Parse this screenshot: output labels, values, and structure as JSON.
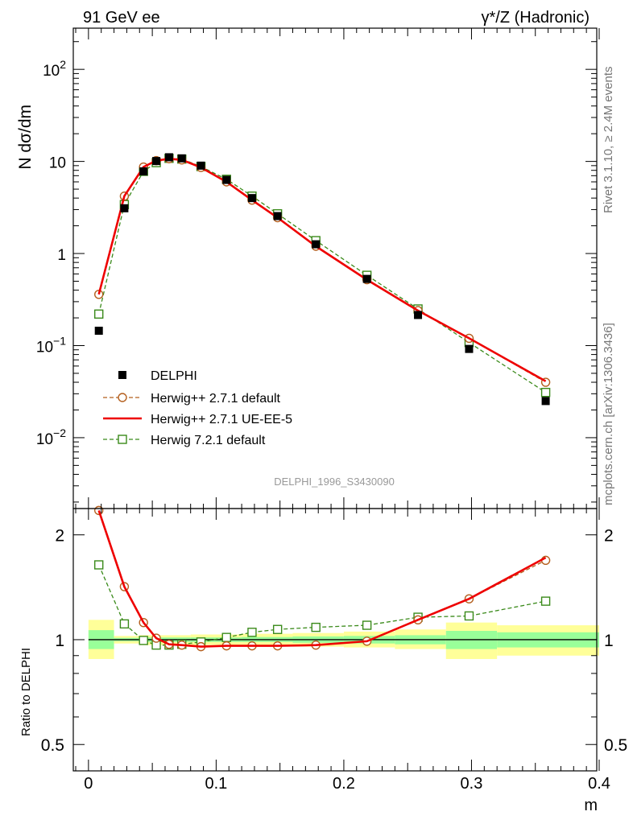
{
  "header": {
    "energy_label": "91 GeV ee",
    "process_label": "γ*/Z (Hadronic)"
  },
  "side": {
    "rivet": "Rivet 3.1.10, ≥ 2.4M events",
    "mcplots": "mcplots.cern.ch [arXiv:1306.3436]"
  },
  "watermark": "DELPHI_1996_S3430090",
  "colors": {
    "data": "#000000",
    "herwigpp_default": "#b45f1e",
    "herwigpp_ueee5": "#ee0000",
    "herwig72": "#3a8a1a",
    "band_outer": "#ffff99",
    "band_inner": "#99ff99"
  },
  "chart_data": [
    {
      "type": "scatter",
      "panel": "main",
      "ylabel": "N dσ/dm",
      "yscale": "log",
      "ylim": [
        0.0017,
        280
      ],
      "xlim": [
        -0.01,
        0.4
      ],
      "yticks": [
        {
          "value": 100,
          "base": "10",
          "exp": "2"
        },
        {
          "value": 10,
          "base": "10",
          "exp": ""
        },
        {
          "value": 1,
          "base": "1",
          "exp": ""
        },
        {
          "value": 0.1,
          "base": "10",
          "exp": "−1"
        },
        {
          "value": 0.01,
          "base": "10",
          "exp": "−2"
        }
      ],
      "legend_position": "bottom-left",
      "x": [
        0.01,
        0.03,
        0.045,
        0.055,
        0.065,
        0.075,
        0.09,
        0.11,
        0.13,
        0.15,
        0.18,
        0.22,
        0.26,
        0.3,
        0.36
      ],
      "series": [
        {
          "name": "DELPHI",
          "style": "data",
          "values": [
            0.145,
            3.1,
            7.8,
            10.1,
            11.1,
            10.8,
            9.0,
            6.3,
            4.0,
            2.55,
            1.26,
            0.53,
            0.215,
            0.092,
            0.025
          ]
        },
        {
          "name": "Herwig++ 2.7.1 default",
          "style": "circle-dashed",
          "values": [
            0.36,
            4.2,
            8.7,
            10.2,
            10.7,
            10.4,
            8.6,
            6.0,
            3.8,
            2.45,
            1.2,
            0.52,
            0.24,
            0.12,
            0.04
          ]
        },
        {
          "name": "Herwig++ 2.7.1 UE-EE-5",
          "style": "solid",
          "values": [
            0.36,
            4.2,
            8.7,
            10.2,
            10.7,
            10.4,
            8.6,
            6.0,
            3.8,
            2.45,
            1.2,
            0.52,
            0.24,
            0.12,
            0.041
          ]
        },
        {
          "name": "Herwig 7.2.1 default",
          "style": "square-dashed",
          "values": [
            0.22,
            3.4,
            7.8,
            9.7,
            10.8,
            10.6,
            8.8,
            6.4,
            4.2,
            2.7,
            1.38,
            0.58,
            0.25,
            0.108,
            0.031
          ]
        }
      ]
    },
    {
      "type": "line",
      "panel": "ratio",
      "ylabel": "Ratio to DELPHI",
      "xlabel": "m",
      "yscale": "log",
      "ylim": [
        0.42,
        2.38
      ],
      "xlim": [
        -0.01,
        0.4
      ],
      "yticks": [
        {
          "value": 2,
          "label": "2"
        },
        {
          "value": 1,
          "label": "1"
        },
        {
          "value": 0.5,
          "label": "0.5"
        }
      ],
      "xticks": [
        {
          "value": 0,
          "label": "0"
        },
        {
          "value": 0.1,
          "label": "0.1"
        },
        {
          "value": 0.2,
          "label": "0.2"
        },
        {
          "value": 0.3,
          "label": "0.3"
        },
        {
          "value": 0.4,
          "label": "0.4"
        }
      ],
      "x": [
        0.01,
        0.03,
        0.045,
        0.055,
        0.065,
        0.075,
        0.09,
        0.11,
        0.13,
        0.15,
        0.18,
        0.22,
        0.26,
        0.3,
        0.36
      ],
      "series": [
        {
          "name": "Herwig++ 2.7.1 default",
          "style": "circle-dashed",
          "values": [
            2.35,
            1.42,
            1.12,
            1.01,
            0.97,
            0.965,
            0.955,
            0.96,
            0.96,
            0.96,
            0.965,
            0.99,
            1.14,
            1.31,
            1.69
          ]
        },
        {
          "name": "Herwig++ 2.7.1 UE-EE-5",
          "style": "solid",
          "values": [
            2.35,
            1.42,
            1.12,
            1.01,
            0.97,
            0.965,
            0.955,
            0.96,
            0.96,
            0.96,
            0.965,
            0.99,
            1.14,
            1.31,
            1.72
          ]
        },
        {
          "name": "Herwig 7.2.1 default",
          "style": "square-dashed",
          "values": [
            1.64,
            1.11,
            0.995,
            0.965,
            0.965,
            0.97,
            0.985,
            1.015,
            1.05,
            1.07,
            1.085,
            1.1,
            1.16,
            1.17,
            1.29
          ]
        }
      ],
      "bands": [
        {
          "x0": 0.0,
          "x1": 0.02,
          "outer": [
            0.88,
            1.14
          ],
          "inner": [
            0.94,
            1.065
          ]
        },
        {
          "x0": 0.02,
          "x1": 0.04,
          "outer": [
            0.975,
            1.025
          ],
          "inner": [
            0.99,
            1.012
          ]
        },
        {
          "x0": 0.04,
          "x1": 0.08,
          "outer": [
            0.965,
            1.03
          ],
          "inner": [
            0.985,
            1.015
          ]
        },
        {
          "x0": 0.08,
          "x1": 0.12,
          "outer": [
            0.965,
            1.035
          ],
          "inner": [
            0.985,
            1.015
          ]
        },
        {
          "x0": 0.12,
          "x1": 0.16,
          "outer": [
            0.965,
            1.04
          ],
          "inner": [
            0.985,
            1.018
          ]
        },
        {
          "x0": 0.16,
          "x1": 0.2,
          "outer": [
            0.955,
            1.045
          ],
          "inner": [
            0.98,
            1.022
          ]
        },
        {
          "x0": 0.2,
          "x1": 0.24,
          "outer": [
            0.95,
            1.055
          ],
          "inner": [
            0.975,
            1.025
          ]
        },
        {
          "x0": 0.24,
          "x1": 0.28,
          "outer": [
            0.94,
            1.07
          ],
          "inner": [
            0.97,
            1.03
          ]
        },
        {
          "x0": 0.28,
          "x1": 0.32,
          "outer": [
            0.88,
            1.12
          ],
          "inner": [
            0.94,
            1.06
          ]
        },
        {
          "x0": 0.32,
          "x1": 0.4,
          "outer": [
            0.9,
            1.1
          ],
          "inner": [
            0.95,
            1.05
          ]
        }
      ]
    }
  ]
}
